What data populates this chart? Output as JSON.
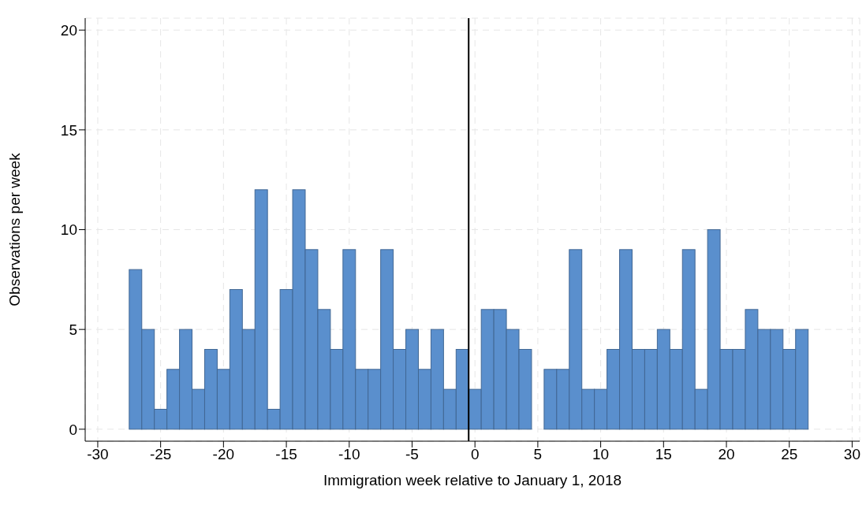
{
  "chart_data": {
    "type": "histogram",
    "xlabel": "Immigration week relative to January 1, 2018",
    "ylabel": "Observations per week",
    "bins": [
      -27.5,
      -26.5,
      -25.5,
      -24.5,
      -23.5,
      -22.5,
      -21.5,
      -20.5,
      -19.5,
      -18.5,
      -17.5,
      -16.5,
      -15.5,
      -14.5,
      -13.5,
      -12.5,
      -11.5,
      -10.5,
      -9.5,
      -8.5,
      -7.5,
      -6.5,
      -5.5,
      -4.5,
      -3.5,
      -2.5,
      -1.5,
      -0.5,
      0.5,
      1.5,
      2.5,
      3.5,
      4.5,
      5.5,
      6.5,
      7.5,
      8.5,
      9.5,
      10.5,
      11.5,
      12.5,
      13.5,
      14.5,
      15.5,
      16.5,
      17.5,
      18.5,
      19.5,
      20.5,
      21.5,
      22.5,
      23.5,
      24.5,
      25.5,
      26.5
    ],
    "values": [
      8,
      5,
      1,
      3,
      5,
      2,
      4,
      3,
      7,
      5,
      12,
      1,
      7,
      12,
      9,
      6,
      4,
      9,
      3,
      3,
      9,
      4,
      5,
      3,
      5,
      2,
      4,
      2,
      6,
      6,
      5,
      4,
      0,
      3,
      3,
      9,
      2,
      2,
      4,
      9,
      4,
      4,
      5,
      4,
      9,
      2,
      10,
      4,
      4,
      6,
      5,
      5,
      4,
      5
    ],
    "color": "#5a8fcd",
    "xlim": [
      -31,
      30.6
    ],
    "xticks": [
      -30,
      -25,
      -20,
      -15,
      -10,
      -5,
      0,
      5,
      10,
      15,
      20,
      25,
      30
    ],
    "ylim": [
      -0.6,
      20.6
    ],
    "yticks": [
      0,
      5,
      10,
      15,
      20
    ],
    "grid": true,
    "ref_lines": [
      {
        "axis": "x",
        "value": -0.5,
        "color": "#000000"
      }
    ]
  }
}
